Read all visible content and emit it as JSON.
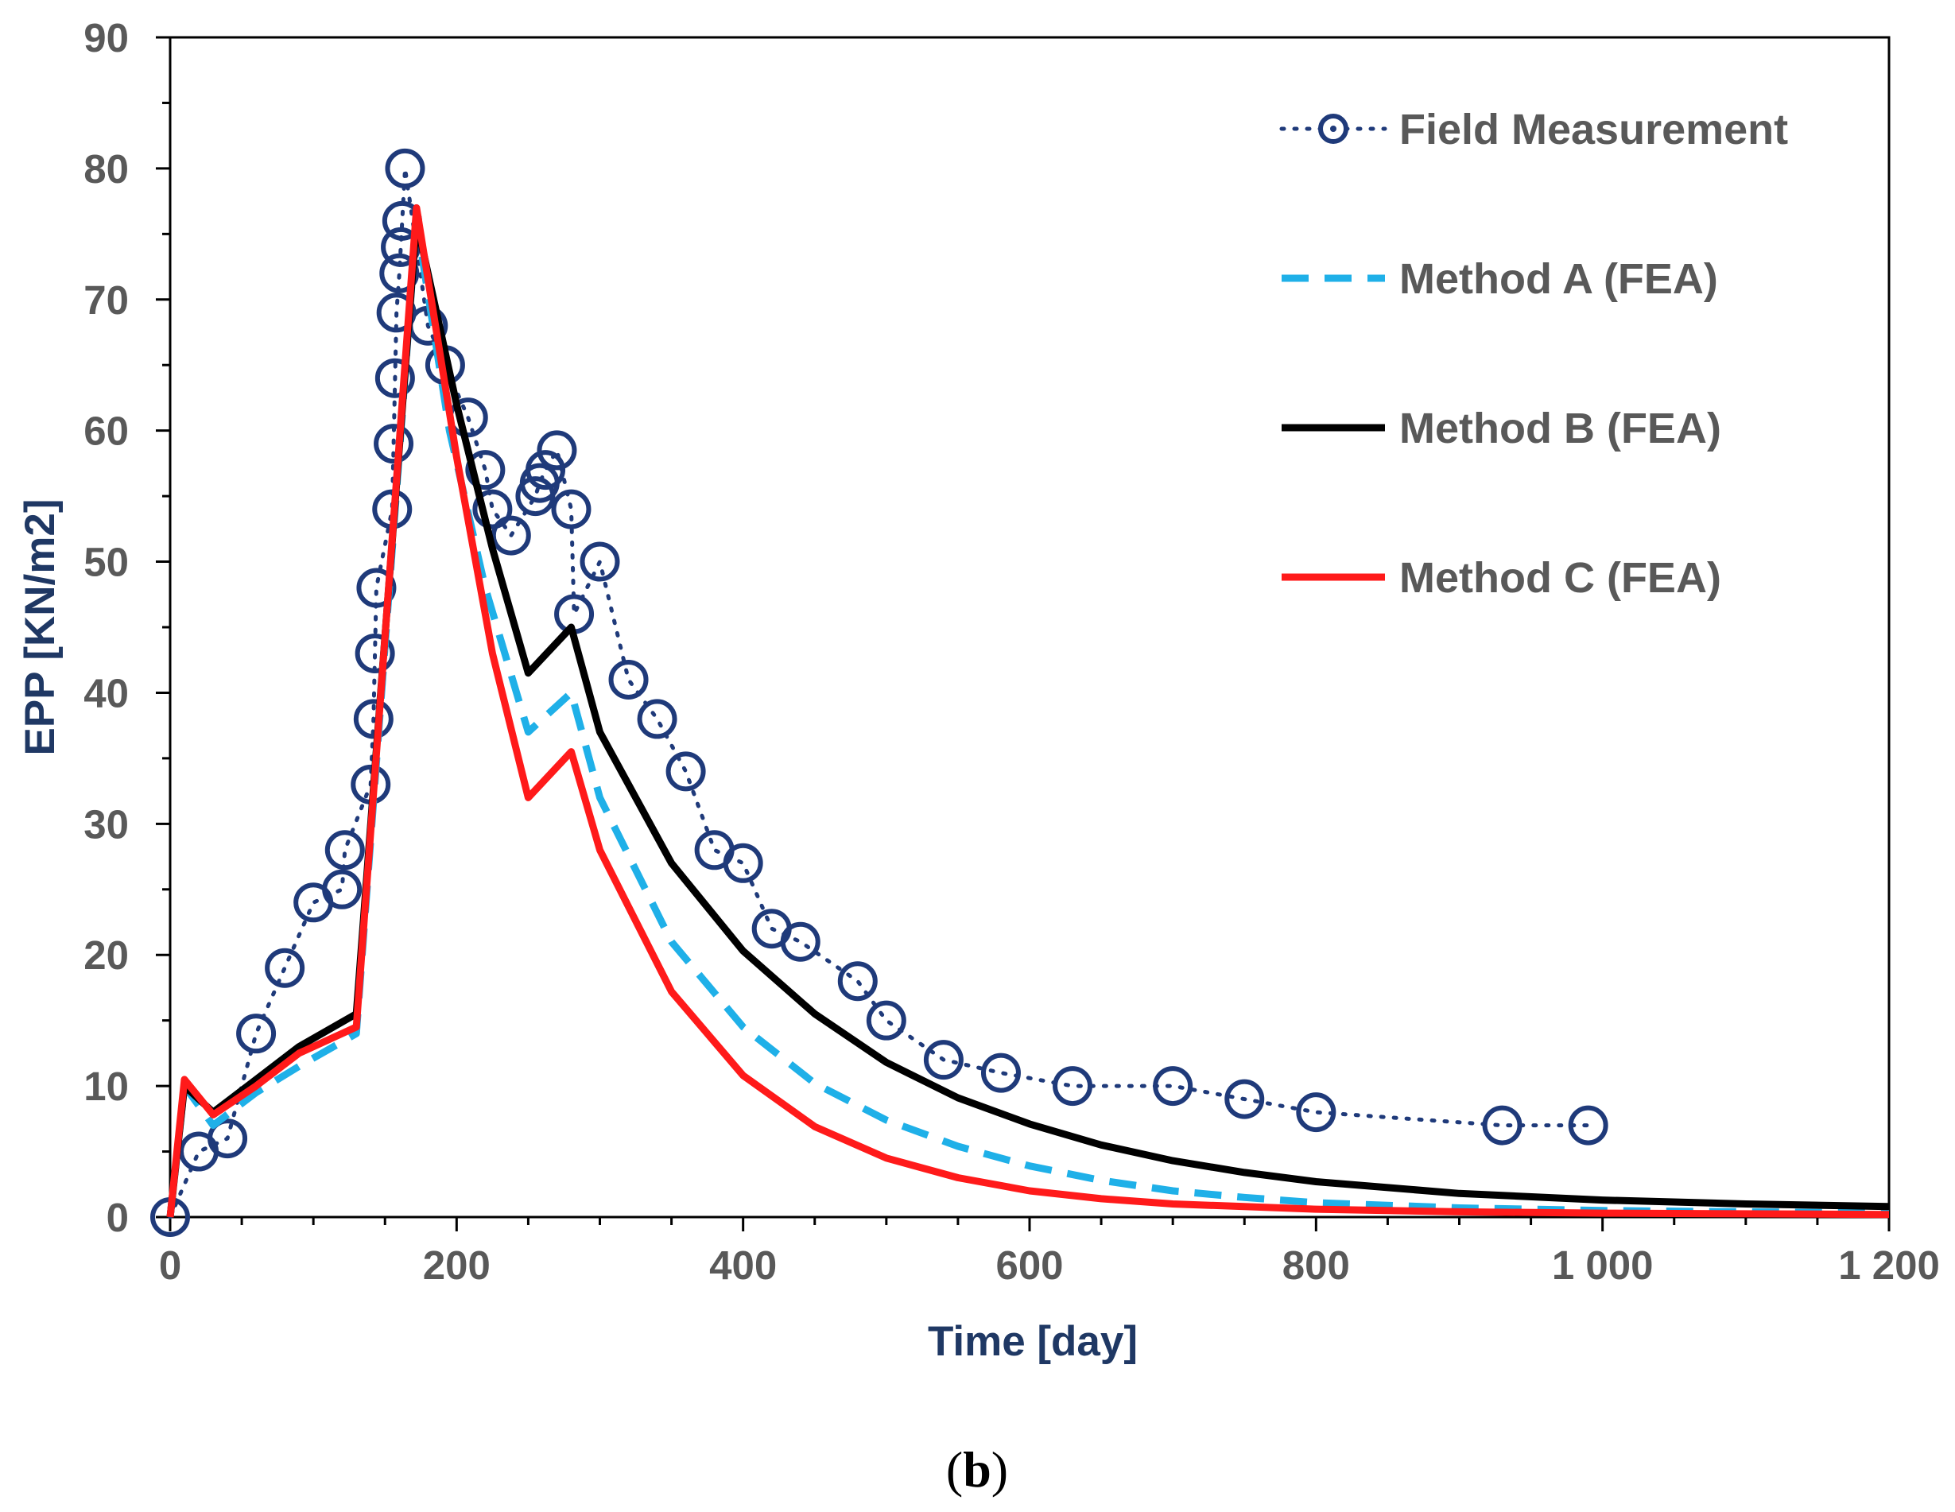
{
  "caption": {
    "open": "(",
    "letter": "b",
    "close": ")"
  },
  "colors": {
    "field": "#1f3a7a",
    "method_a": "#1fb0e8",
    "method_b": "#000000",
    "method_c": "#ff1a1a",
    "axis_text": "#595959",
    "axis_title": "#1f3864"
  },
  "chart_data": {
    "type": "line",
    "xlabel": "Time [day]",
    "ylabel": "EPP [KN/m2]",
    "xlim": [
      0,
      1200
    ],
    "ylim": [
      0,
      90
    ],
    "x_ticks": [
      0,
      200,
      400,
      600,
      800,
      1000,
      1200
    ],
    "x_tick_labels": [
      "0",
      "200",
      "400",
      "600",
      "800",
      "1 000",
      "1 200"
    ],
    "y_ticks": [
      0,
      10,
      20,
      30,
      40,
      50,
      60,
      70,
      80,
      90
    ],
    "y_tick_labels": [
      "0",
      "10",
      "20",
      "30",
      "40",
      "50",
      "60",
      "70",
      "80",
      "90"
    ],
    "grid": false,
    "legend_position": "top-right",
    "series": [
      {
        "name": "Field Measurement",
        "style": "dotted-circle-markers",
        "color": "#1f3a7a",
        "points": [
          [
            0,
            0
          ],
          [
            20,
            5
          ],
          [
            40,
            6
          ],
          [
            60,
            14
          ],
          [
            80,
            19
          ],
          [
            100,
            24
          ],
          [
            120,
            25
          ],
          [
            122,
            28
          ],
          [
            140,
            33
          ],
          [
            142,
            38
          ],
          [
            143,
            43
          ],
          [
            144,
            48
          ],
          [
            155,
            54
          ],
          [
            156,
            59
          ],
          [
            157,
            64
          ],
          [
            158,
            69
          ],
          [
            160,
            72
          ],
          [
            161,
            74
          ],
          [
            162,
            76
          ],
          [
            164,
            80
          ],
          [
            180,
            68
          ],
          [
            192,
            65
          ],
          [
            208,
            61
          ],
          [
            220,
            57
          ],
          [
            225,
            54
          ],
          [
            238,
            52
          ],
          [
            255,
            55
          ],
          [
            258,
            56
          ],
          [
            262,
            57
          ],
          [
            270,
            58.5
          ],
          [
            280,
            54
          ],
          [
            282,
            46
          ],
          [
            300,
            50
          ],
          [
            320,
            41
          ],
          [
            340,
            38
          ],
          [
            360,
            34
          ],
          [
            380,
            28
          ],
          [
            400,
            27
          ],
          [
            420,
            22
          ],
          [
            440,
            21
          ],
          [
            480,
            18
          ],
          [
            500,
            15
          ],
          [
            540,
            12
          ],
          [
            580,
            11
          ],
          [
            630,
            10
          ],
          [
            700,
            10
          ],
          [
            750,
            9
          ],
          [
            800,
            8
          ],
          [
            930,
            7
          ],
          [
            990,
            7
          ]
        ]
      },
      {
        "name": "Method A (FEA)",
        "style": "dashed",
        "color": "#1fb0e8",
        "points": [
          [
            0,
            0
          ],
          [
            10,
            10
          ],
          [
            30,
            7
          ],
          [
            60,
            9.5
          ],
          [
            90,
            11.5
          ],
          [
            130,
            14
          ],
          [
            172,
            76
          ],
          [
            195,
            60
          ],
          [
            220,
            48
          ],
          [
            250,
            37
          ],
          [
            280,
            40
          ],
          [
            300,
            32
          ],
          [
            350,
            21
          ],
          [
            400,
            14.5
          ],
          [
            450,
            10.2
          ],
          [
            500,
            7.4
          ],
          [
            550,
            5.4
          ],
          [
            600,
            3.9
          ],
          [
            650,
            2.8
          ],
          [
            700,
            2
          ],
          [
            750,
            1.5
          ],
          [
            800,
            1.1
          ],
          [
            900,
            0.7
          ],
          [
            1000,
            0.5
          ],
          [
            1100,
            0.4
          ],
          [
            1200,
            0.3
          ]
        ]
      },
      {
        "name": "Method B (FEA)",
        "style": "solid",
        "color": "#000000",
        "points": [
          [
            0,
            0
          ],
          [
            10,
            10
          ],
          [
            30,
            8
          ],
          [
            60,
            10.5
          ],
          [
            90,
            13
          ],
          [
            130,
            15.5
          ],
          [
            172,
            76
          ],
          [
            200,
            62
          ],
          [
            225,
            51
          ],
          [
            250,
            41.5
          ],
          [
            280,
            45
          ],
          [
            300,
            37
          ],
          [
            350,
            27
          ],
          [
            400,
            20.3
          ],
          [
            450,
            15.5
          ],
          [
            500,
            11.8
          ],
          [
            550,
            9.1
          ],
          [
            600,
            7.1
          ],
          [
            650,
            5.5
          ],
          [
            700,
            4.3
          ],
          [
            750,
            3.4
          ],
          [
            800,
            2.7
          ],
          [
            900,
            1.8
          ],
          [
            1000,
            1.3
          ],
          [
            1100,
            1
          ],
          [
            1200,
            0.8
          ]
        ]
      },
      {
        "name": "Method C (FEA)",
        "style": "solid",
        "color": "#ff1a1a",
        "points": [
          [
            0,
            0
          ],
          [
            10,
            10.5
          ],
          [
            30,
            7.8
          ],
          [
            60,
            10
          ],
          [
            90,
            12.5
          ],
          [
            130,
            14.5
          ],
          [
            172,
            77
          ],
          [
            200,
            58
          ],
          [
            225,
            43
          ],
          [
            250,
            32
          ],
          [
            280,
            35.5
          ],
          [
            300,
            28
          ],
          [
            350,
            17.2
          ],
          [
            400,
            10.8
          ],
          [
            450,
            6.9
          ],
          [
            500,
            4.5
          ],
          [
            550,
            3
          ],
          [
            600,
            2
          ],
          [
            650,
            1.4
          ],
          [
            700,
            1
          ],
          [
            750,
            0.8
          ],
          [
            800,
            0.6
          ],
          [
            900,
            0.4
          ],
          [
            1000,
            0.3
          ],
          [
            1100,
            0.25
          ],
          [
            1200,
            0.2
          ]
        ]
      }
    ]
  }
}
